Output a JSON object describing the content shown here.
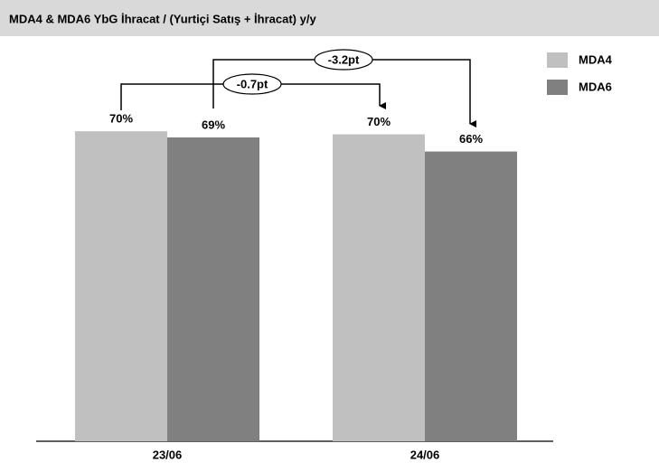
{
  "chart_data": {
    "type": "bar",
    "title": "MDA4 & MDA6 YbG İhracat / (Yurtiçi Satış + İhracat) y/y",
    "categories": [
      "23/06",
      "24/06"
    ],
    "series": [
      {
        "name": "MDA4",
        "color": "#c0c0c0",
        "values": [
          70.4,
          69.7
        ],
        "value_labels": [
          "70%",
          "70%"
        ]
      },
      {
        "name": "MDA6",
        "color": "#808080",
        "values": [
          69.0,
          65.8
        ],
        "value_labels": [
          "69%",
          "66%"
        ]
      }
    ],
    "ylim": [
      0,
      100
    ],
    "annotations": [
      "-0.7pt",
      "-3.2pt"
    ]
  }
}
